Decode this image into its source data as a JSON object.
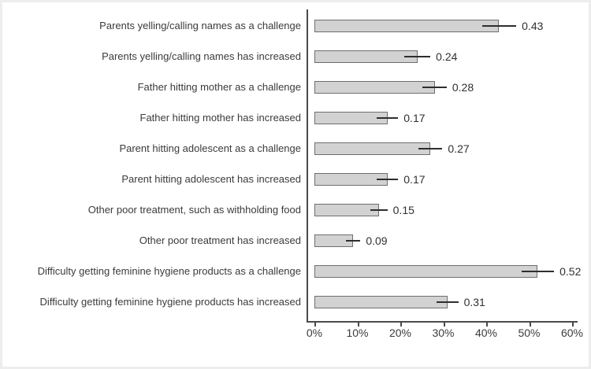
{
  "page": {
    "background_color": "#ffffff",
    "frame_tint_color": "#ededed"
  },
  "chart_data": {
    "type": "bar",
    "orientation": "horizontal",
    "title": "",
    "xlabel": "",
    "ylabel": "",
    "grid": false,
    "legend": false,
    "xlim_percent": [
      0,
      60
    ],
    "categories": [
      "Parents yelling/calling names as a challenge",
      "Parents yelling/calling names has increased",
      "Father hitting mother as a challenge",
      "Father hitting mother has increased",
      "Parent hitting adolescent as a challenge",
      "Parent hitting adolescent has increased",
      "Other poor treatment, such as withholding food",
      "Other poor treatment has increased",
      "Difficulty getting feminine hygiene products as a challenge",
      "Difficulty getting feminine hygiene products has increased"
    ],
    "values": [
      0.43,
      0.24,
      0.28,
      0.17,
      0.27,
      0.17,
      0.15,
      0.09,
      0.52,
      0.31
    ],
    "value_labels": [
      "0.43",
      "0.24",
      "0.28",
      "0.17",
      "0.27",
      "0.17",
      "0.15",
      "0.09",
      "0.52",
      "0.31"
    ],
    "error_half_widths": [
      0.04,
      0.03,
      0.028,
      0.025,
      0.028,
      0.025,
      0.02,
      0.017,
      0.038,
      0.025
    ],
    "x_tick_labels": [
      "0%",
      "10%",
      "20%",
      "30%",
      "40%",
      "50%",
      "60%"
    ],
    "x_tick_values": [
      0,
      10,
      20,
      30,
      40,
      50,
      60
    ],
    "colors": {
      "bar_fill": "#d2d2d2",
      "bar_border": "#6e6e6e",
      "axis": "#4a4a4a",
      "error_bar": "#2e2e2e",
      "text": "#3b3b3b"
    }
  }
}
